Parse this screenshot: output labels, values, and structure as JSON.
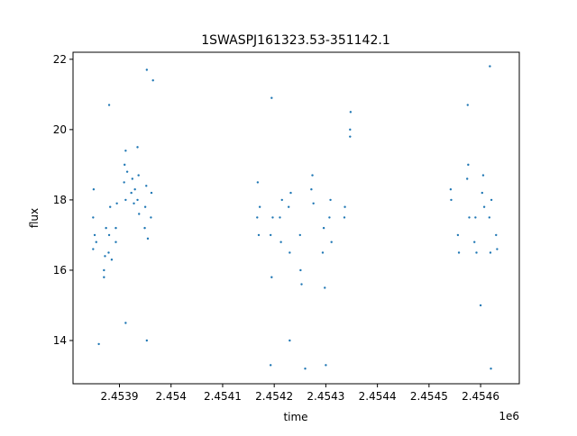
{
  "chart_data": {
    "type": "scatter",
    "title": "1SWASPJ161323.53-351142.1",
    "x_label": "time",
    "y_label": "flux",
    "x_offset_label": "1e6",
    "color": "#1f77b4",
    "x": [
      2.453849,
      2.453849,
      2.45385,
      2.453852,
      2.453855,
      2.45387,
      2.45387,
      2.453872,
      2.453874,
      2.453879,
      2.45388,
      2.453882,
      2.453885,
      2.453893,
      2.453895,
      2.453893,
      2.453909,
      2.45391,
      2.453912,
      2.453915,
      2.453912,
      2.453923,
      2.453925,
      2.453928,
      2.45393,
      2.453935,
      2.453937,
      2.453935,
      2.453938,
      2.453949,
      2.45395,
      2.453952,
      2.453955,
      2.453961,
      2.453962,
      2.45388,
      2.453912,
      2.453953,
      2.453965,
      2.45386,
      2.453953,
      2.454167,
      2.454168,
      2.45417,
      2.454172,
      2.454193,
      2.454195,
      2.454197,
      2.454211,
      2.454213,
      2.454215,
      2.454228,
      2.45423,
      2.454232,
      2.454251,
      2.454253,
      2.45425,
      2.454272,
      2.454274,
      2.454276,
      2.454294,
      2.454296,
      2.454298,
      2.454307,
      2.454309,
      2.454311,
      2.454336,
      2.454337,
      2.454347,
      2.454348,
      2.454347,
      2.454193,
      2.454195,
      2.45426,
      2.4543,
      2.45423,
      2.454542,
      2.454543,
      2.454556,
      2.454558,
      2.454574,
      2.454576,
      2.454578,
      2.454588,
      2.45459,
      2.454592,
      2.454603,
      2.454605,
      2.454607,
      2.454617,
      2.454619,
      2.454621,
      2.45463,
      2.454632,
      2.45462,
      2.454618,
      2.454575,
      2.4546
    ],
    "values": [
      16.6,
      17.5,
      18.3,
      17.0,
      16.8,
      16.0,
      15.8,
      16.4,
      17.2,
      16.5,
      17.0,
      17.8,
      16.3,
      17.2,
      17.9,
      16.8,
      18.5,
      19.0,
      18.0,
      18.8,
      19.4,
      18.2,
      18.6,
      17.9,
      18.3,
      18.0,
      18.7,
      19.5,
      17.6,
      17.2,
      17.8,
      18.4,
      16.9,
      17.5,
      18.2,
      20.7,
      14.5,
      21.7,
      21.4,
      13.9,
      14.0,
      17.5,
      18.5,
      17.0,
      17.8,
      17.0,
      15.8,
      17.5,
      17.5,
      16.8,
      18.0,
      17.8,
      16.5,
      18.2,
      16.0,
      15.6,
      17.0,
      18.3,
      18.7,
      17.9,
      16.5,
      17.2,
      15.5,
      17.5,
      18.0,
      16.8,
      17.5,
      17.8,
      20.0,
      20.5,
      19.8,
      13.3,
      20.9,
      13.2,
      13.3,
      14.0,
      18.3,
      18.0,
      17.0,
      16.5,
      18.6,
      19.0,
      17.5,
      16.8,
      17.5,
      16.5,
      18.2,
      18.7,
      17.8,
      17.5,
      16.5,
      18.0,
      17.0,
      16.6,
      13.2,
      21.8,
      20.7,
      15.0
    ],
    "xlim": [
      2.45381,
      2.454675
    ],
    "ylim": [
      12.77,
      22.2
    ],
    "xticks": [
      2.4539,
      2.454,
      2.4541,
      2.4542,
      2.4543,
      2.4544,
      2.4545,
      2.4546
    ],
    "yticks": [
      14,
      16,
      18,
      20,
      22
    ]
  }
}
